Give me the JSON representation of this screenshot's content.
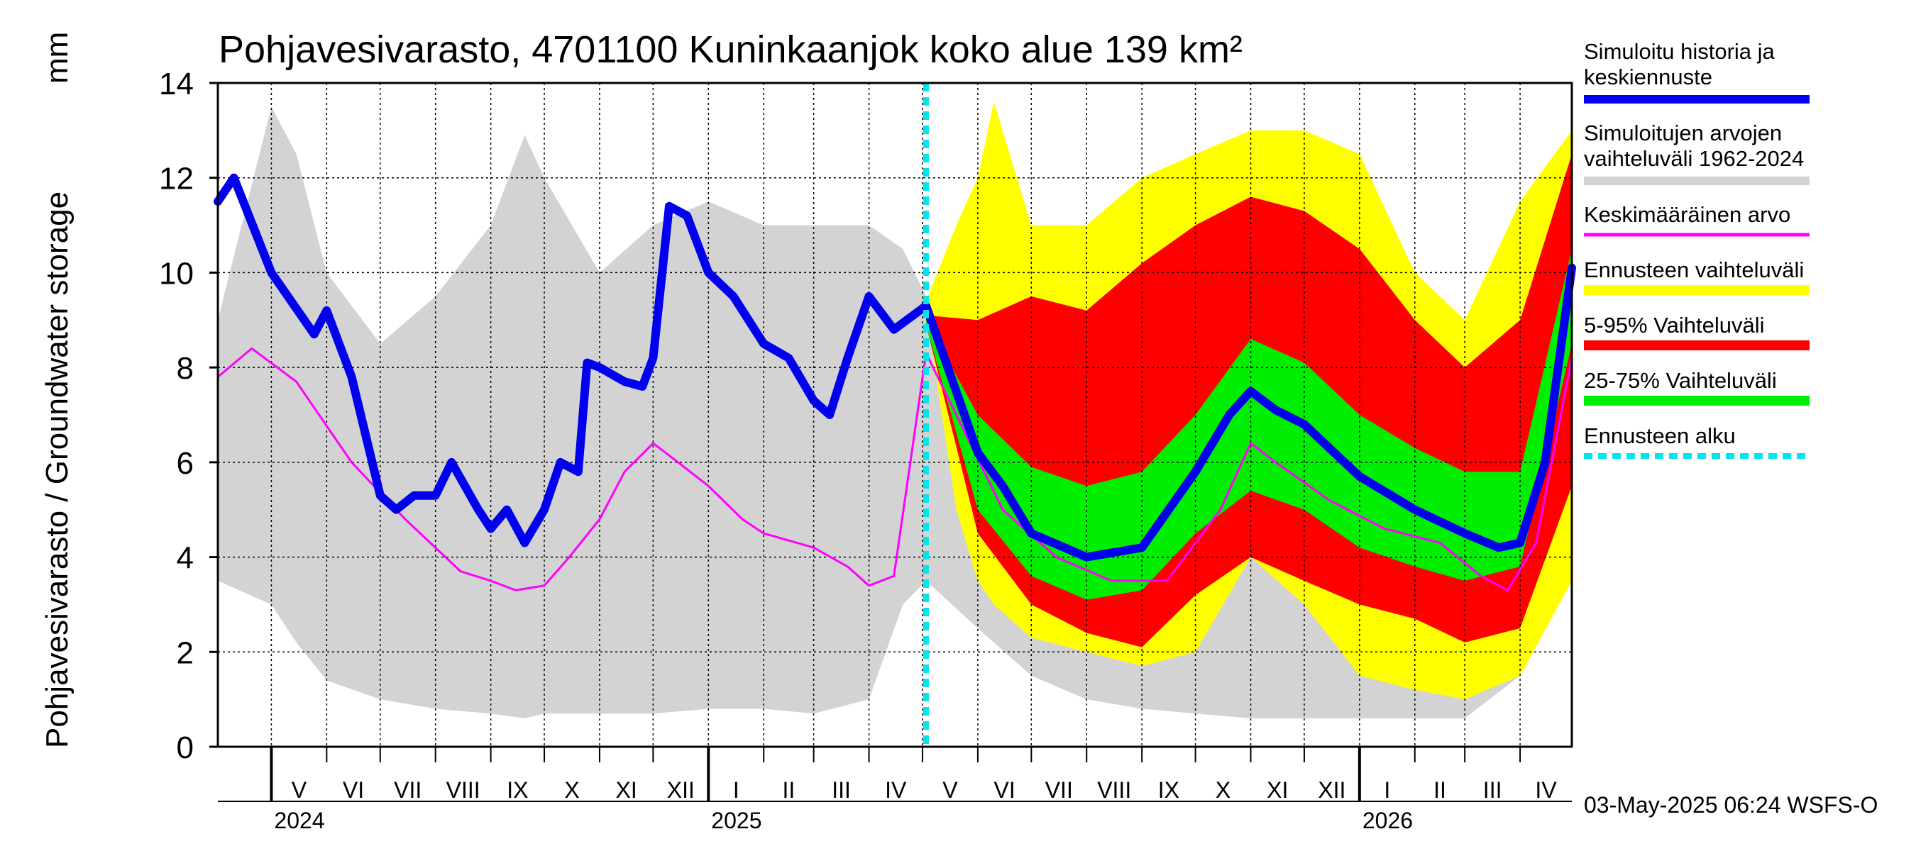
{
  "chart_data": {
    "type": "area",
    "title": "Pohjavesivarasto, 4701100 Kuninkaanjok koko alue 139 km²",
    "ylabel": "Pohjavesivarasto / Groundwater storage",
    "yunit": "mm",
    "ylim": [
      0,
      14
    ],
    "yticks": [
      0,
      2,
      4,
      6,
      8,
      10,
      12,
      14
    ],
    "xlim": [
      "2024-04-01",
      "2026-04-30"
    ],
    "grid": true,
    "forecast_start": "2025-05-03",
    "months": [
      {
        "label": "V",
        "start": "2024-05-01"
      },
      {
        "label": "VI",
        "start": "2024-06-01"
      },
      {
        "label": "VII",
        "start": "2024-07-01"
      },
      {
        "label": "VIII",
        "start": "2024-08-01"
      },
      {
        "label": "IX",
        "start": "2024-09-01"
      },
      {
        "label": "X",
        "start": "2024-10-01"
      },
      {
        "label": "XI",
        "start": "2024-11-01"
      },
      {
        "label": "XII",
        "start": "2024-12-01"
      },
      {
        "label": "I",
        "start": "2025-01-01"
      },
      {
        "label": "II",
        "start": "2025-02-01"
      },
      {
        "label": "III",
        "start": "2025-03-01"
      },
      {
        "label": "IV",
        "start": "2025-04-01"
      },
      {
        "label": "V",
        "start": "2025-05-01"
      },
      {
        "label": "VI",
        "start": "2025-06-01"
      },
      {
        "label": "VII",
        "start": "2025-07-01"
      },
      {
        "label": "VIII",
        "start": "2025-08-01"
      },
      {
        "label": "IX",
        "start": "2025-09-01"
      },
      {
        "label": "X",
        "start": "2025-10-01"
      },
      {
        "label": "XI",
        "start": "2025-11-01"
      },
      {
        "label": "XII",
        "start": "2025-12-01"
      },
      {
        "label": "I",
        "start": "2026-01-01"
      },
      {
        "label": "II",
        "start": "2026-02-01"
      },
      {
        "label": "III",
        "start": "2026-03-01"
      },
      {
        "label": "IV",
        "start": "2026-04-01"
      }
    ],
    "years": [
      {
        "label": "2024",
        "date": "2024-05-01"
      },
      {
        "label": "2025",
        "date": "2025-01-01"
      },
      {
        "label": "2026",
        "date": "2026-01-01"
      }
    ],
    "series": [
      {
        "name": "Simuloitujen arvojen vaihteluväli 1962-2024",
        "role": "band",
        "color": "#d3d3d3",
        "x": [
          "2024-04-01",
          "2024-05-01",
          "2024-05-15",
          "2024-06-01",
          "2024-07-01",
          "2024-08-01",
          "2024-09-01",
          "2024-09-20",
          "2024-10-01",
          "2024-11-01",
          "2024-12-01",
          "2025-01-01",
          "2025-02-01",
          "2025-03-01",
          "2025-04-01",
          "2025-04-20",
          "2025-05-03",
          "2025-06-01",
          "2025-07-01",
          "2025-08-01",
          "2025-09-01",
          "2025-10-01",
          "2025-11-01",
          "2025-12-01",
          "2026-01-01",
          "2026-02-01",
          "2026-03-01",
          "2026-04-01",
          "2026-04-30"
        ],
        "upper": [
          9.0,
          13.5,
          12.5,
          10.0,
          8.5,
          9.5,
          11.0,
          12.9,
          12.0,
          10.0,
          11.0,
          11.5,
          11.0,
          11.0,
          11.0,
          10.5,
          9.5,
          9.0,
          9.0,
          10.0,
          11.5,
          12.0,
          11.5,
          11.0,
          10.0,
          8.5,
          7.5,
          11.0,
          11.5
        ],
        "lower": [
          3.5,
          3.0,
          2.2,
          1.4,
          1.0,
          0.8,
          0.7,
          0.6,
          0.7,
          0.7,
          0.7,
          0.8,
          0.8,
          0.7,
          1.0,
          3.0,
          3.5,
          2.5,
          1.5,
          1.0,
          0.8,
          0.7,
          0.6,
          0.6,
          0.6,
          0.6,
          0.6,
          1.5,
          4.0
        ]
      },
      {
        "name": "Ennusteen vaihteluväli",
        "role": "band",
        "color": "#ffff00",
        "x": [
          "2025-05-03",
          "2025-05-20",
          "2025-06-01",
          "2025-06-10",
          "2025-07-01",
          "2025-08-01",
          "2025-09-01",
          "2025-10-01",
          "2025-11-01",
          "2025-12-01",
          "2026-01-01",
          "2026-02-01",
          "2026-03-01",
          "2026-04-01",
          "2026-04-30"
        ],
        "upper": [
          9.4,
          11.0,
          12.0,
          13.6,
          11.0,
          11.0,
          12.0,
          12.5,
          13.0,
          13.0,
          12.5,
          10.0,
          9.0,
          11.5,
          13.0
        ],
        "lower": [
          9.2,
          5.0,
          3.5,
          3.0,
          2.3,
          2.0,
          1.7,
          2.0,
          4.0,
          3.0,
          1.5,
          1.2,
          1.0,
          1.5,
          3.5
        ]
      },
      {
        "name": "5-95% Vaihteluväli",
        "role": "band",
        "color": "#ff0000",
        "x": [
          "2025-05-03",
          "2025-06-01",
          "2025-07-01",
          "2025-08-01",
          "2025-09-01",
          "2025-10-01",
          "2025-11-01",
          "2025-12-01",
          "2026-01-01",
          "2026-02-01",
          "2026-03-01",
          "2026-04-01",
          "2026-04-30"
        ],
        "upper": [
          9.1,
          9.0,
          9.5,
          9.2,
          10.2,
          11.0,
          11.6,
          11.3,
          10.5,
          9.0,
          8.0,
          9.0,
          12.5
        ],
        "lower": [
          8.9,
          4.5,
          3.0,
          2.4,
          2.1,
          3.2,
          4.0,
          3.5,
          3.0,
          2.7,
          2.2,
          2.5,
          5.5
        ]
      },
      {
        "name": "25-75% Vaihteluväli",
        "role": "band",
        "color": "#00ee00",
        "x": [
          "2025-05-03",
          "2025-06-01",
          "2025-07-01",
          "2025-08-01",
          "2025-09-01",
          "2025-10-01",
          "2025-11-01",
          "2025-12-01",
          "2026-01-01",
          "2026-02-01",
          "2026-03-01",
          "2026-04-01",
          "2026-04-30"
        ],
        "upper": [
          9.0,
          7.0,
          5.9,
          5.5,
          5.8,
          7.0,
          8.6,
          8.1,
          7.0,
          6.3,
          5.8,
          5.8,
          10.5
        ],
        "lower": [
          8.9,
          5.0,
          3.6,
          3.1,
          3.3,
          4.5,
          5.4,
          5.0,
          4.2,
          3.8,
          3.5,
          3.8,
          8.5
        ]
      },
      {
        "name": "Keskimääräinen arvo",
        "role": "line",
        "color": "#ff00ff",
        "width": 3,
        "x": [
          "2024-04-01",
          "2024-04-20",
          "2024-05-15",
          "2024-06-15",
          "2024-07-15",
          "2024-08-15",
          "2024-09-01",
          "2024-09-15",
          "2024-10-01",
          "2024-10-15",
          "2024-11-01",
          "2024-11-15",
          "2024-12-01",
          "2024-12-15",
          "2025-01-01",
          "2025-01-20",
          "2025-02-01",
          "2025-03-01",
          "2025-03-20",
          "2025-04-01",
          "2025-04-15",
          "2025-05-03",
          "2025-05-20",
          "2025-06-15",
          "2025-07-15",
          "2025-08-15",
          "2025-09-15",
          "2025-10-15",
          "2025-11-01",
          "2025-11-15",
          "2025-12-15",
          "2026-01-15",
          "2026-02-15",
          "2026-03-10",
          "2026-03-25",
          "2026-04-10",
          "2026-04-30"
        ],
        "y": [
          7.8,
          8.4,
          7.7,
          6.0,
          4.8,
          3.7,
          3.5,
          3.3,
          3.4,
          4.0,
          4.8,
          5.8,
          6.4,
          6.0,
          5.5,
          4.8,
          4.5,
          4.2,
          3.8,
          3.4,
          3.6,
          8.3,
          7.0,
          5.0,
          4.0,
          3.5,
          3.5,
          5.0,
          6.4,
          6.0,
          5.2,
          4.6,
          4.3,
          3.6,
          3.3,
          4.3,
          8.2
        ]
      },
      {
        "name": "Simuloitu historia ja keskiennuste",
        "role": "line",
        "color": "#0000ee",
        "width": 12,
        "x": [
          "2024-04-01",
          "2024-04-10",
          "2024-05-01",
          "2024-05-25",
          "2024-06-01",
          "2024-06-15",
          "2024-07-01",
          "2024-07-10",
          "2024-07-20",
          "2024-08-01",
          "2024-08-10",
          "2024-08-25",
          "2024-09-01",
          "2024-09-10",
          "2024-09-20",
          "2024-10-01",
          "2024-10-10",
          "2024-10-20",
          "2024-10-25",
          "2024-11-01",
          "2024-11-15",
          "2024-11-25",
          "2024-12-01",
          "2024-12-10",
          "2024-12-20",
          "2025-01-01",
          "2025-01-15",
          "2025-02-01",
          "2025-02-15",
          "2025-03-01",
          "2025-03-10",
          "2025-03-20",
          "2025-04-01",
          "2025-04-15",
          "2025-05-03",
          "2025-06-01",
          "2025-06-15",
          "2025-07-01",
          "2025-08-01",
          "2025-09-01",
          "2025-10-01",
          "2025-10-20",
          "2025-11-01",
          "2025-11-15",
          "2025-12-01",
          "2026-01-01",
          "2026-02-01",
          "2026-03-01",
          "2026-03-20",
          "2026-04-01",
          "2026-04-15",
          "2026-04-30"
        ],
        "y": [
          11.5,
          12.0,
          10.0,
          8.7,
          9.2,
          7.8,
          5.3,
          5.0,
          5.3,
          5.3,
          6.0,
          5.0,
          4.6,
          5.0,
          4.3,
          5.0,
          6.0,
          5.8,
          8.1,
          8.0,
          7.7,
          7.6,
          8.2,
          11.4,
          11.2,
          10.0,
          9.5,
          8.5,
          8.2,
          7.3,
          7.0,
          8.2,
          9.5,
          8.8,
          9.3,
          6.2,
          5.5,
          4.5,
          4.0,
          4.2,
          5.8,
          7.0,
          7.5,
          7.1,
          6.8,
          5.7,
          5.0,
          4.5,
          4.2,
          4.3,
          6.0,
          10.1
        ]
      }
    ],
    "legend_entries": [
      {
        "text": "Simuloitu historia ja keskiennuste",
        "lines": [
          "Simuloitu historia ja",
          "keskiennuste"
        ],
        "color": "#0000ee"
      },
      {
        "text": "Simuloitujen arvojen vaihteluväli 1962-2024",
        "lines": [
          "Simuloitujen arvojen",
          "vaihteluväli 1962-2024"
        ],
        "color": "#d3d3d3"
      },
      {
        "text": "Keskimääräinen arvo",
        "lines": [
          "Keskimääräinen arvo"
        ],
        "color": "#ff00ff"
      },
      {
        "text": "Ennusteen vaihteluväli",
        "lines": [
          "Ennusteen vaihteluväli"
        ],
        "color": "#ffff00"
      },
      {
        "text": "5-95% Vaihteluväli",
        "lines": [
          "5-95% Vaihteluväli"
        ],
        "color": "#ff0000"
      },
      {
        "text": "25-75% Vaihteluväli",
        "lines": [
          "25-75% Vaihteluväli"
        ],
        "color": "#00ee00"
      },
      {
        "text": "Ennusteen alku",
        "lines": [
          "Ennusteen alku"
        ],
        "color": "#00e5ee"
      }
    ],
    "legend_position": "right",
    "footer": "03-May-2025 06:24 WSFS-O"
  }
}
